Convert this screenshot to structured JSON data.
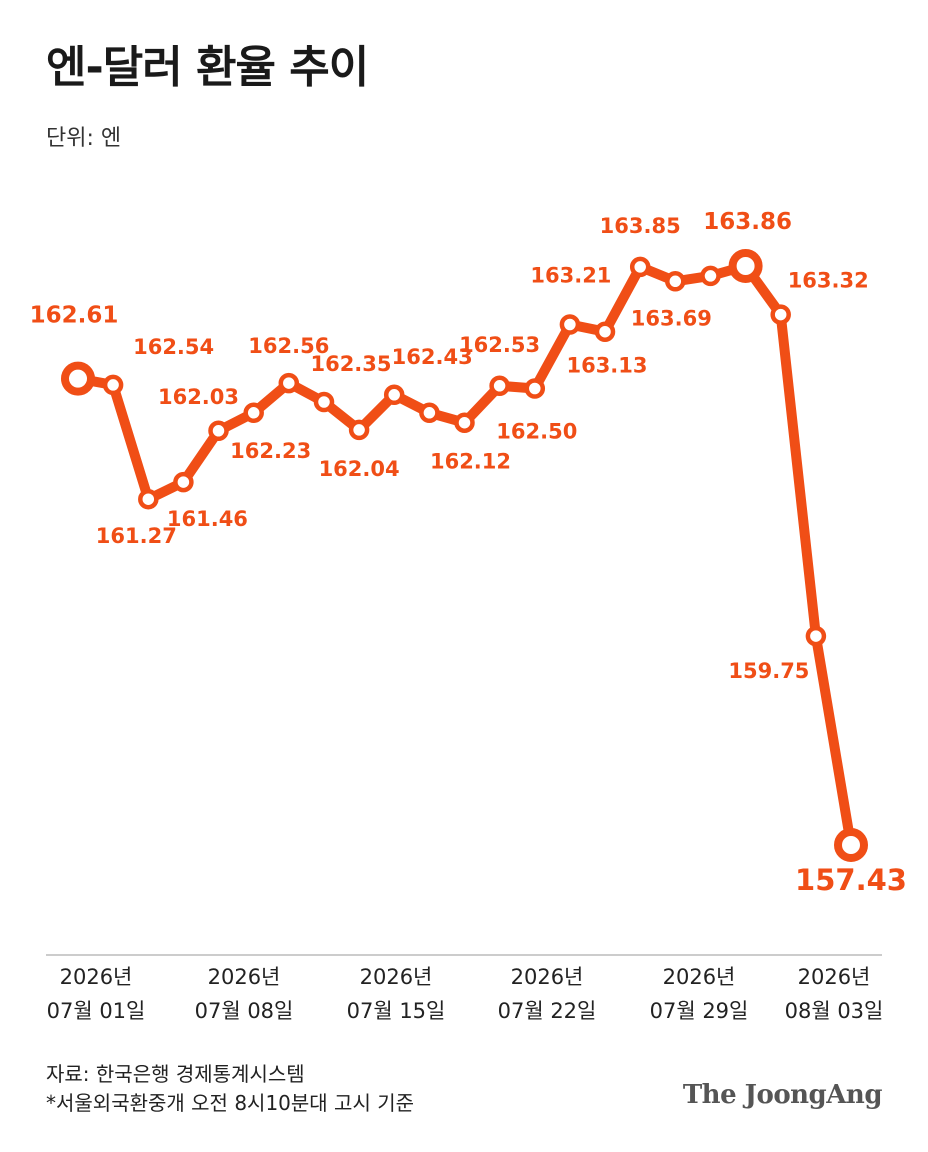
{
  "header": {
    "title": "엔-달러 환율 추이",
    "unit": "단위: 엔"
  },
  "footer": {
    "source": "자료: 한국은행 경제통계시스템",
    "note": "*서울외국환중개 오전 8시10분대 고시 기준",
    "brand": "The JoongAng"
  },
  "colors": {
    "line": "#f04e16",
    "axis": "#bbbbbb",
    "text": "#222222"
  },
  "chart_data": {
    "type": "line",
    "title": "엔-달러 환율 추이",
    "ylabel": "단위: 엔",
    "grid": false,
    "x_tick_labels": [
      {
        "index": 0,
        "line1": "2026년",
        "line2": "07월 01일"
      },
      {
        "index": 4,
        "line1": "2026년",
        "line2": "07월 08일"
      },
      {
        "index": 9,
        "line1": "2026년",
        "line2": "07월 15일"
      },
      {
        "index": 13,
        "line1": "2026년",
        "line2": "07월 22일"
      },
      {
        "index": 17,
        "line1": "2026년",
        "line2": "07월 29일"
      },
      {
        "index": 21,
        "line1": "2026년",
        "line2": "08월 03일"
      }
    ],
    "series": [
      {
        "values": [
          162.61,
          162.54,
          161.27,
          161.46,
          162.03,
          162.23,
          162.56,
          162.35,
          162.04,
          162.43,
          162.23,
          162.12,
          162.53,
          162.5,
          163.21,
          163.13,
          163.85,
          163.69,
          163.75,
          163.86,
          163.32,
          159.75,
          157.43
        ],
        "labels": [
          "162.61",
          "162.54",
          "161.27",
          "161.46",
          "162.03",
          "162.23",
          "162.56",
          "162.35",
          "162.04",
          "162.43",
          "",
          "162.12",
          "162.53",
          "162.50",
          "163.21",
          "163.13",
          "163.85",
          "163.69",
          "",
          "163.86",
          "163.32",
          "159.75",
          "157.43"
        ],
        "highlight": [
          0,
          19,
          22
        ]
      }
    ]
  }
}
